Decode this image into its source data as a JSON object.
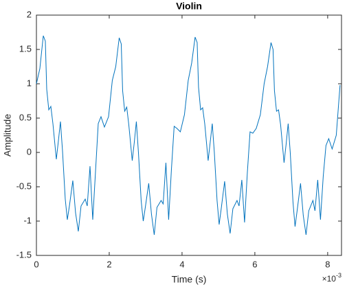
{
  "chart_data": {
    "type": "line",
    "title": "Violin",
    "x_label": "Time (s)",
    "y_label": "Amplitude",
    "x_multiplier": "×10",
    "x_exponent": "-3",
    "series": [
      {
        "name": "Violin",
        "color": "#0072BD",
        "x": [
          0,
          0.094,
          0.189,
          0.245,
          0.283,
          0.34,
          0.396,
          0.453,
          0.547,
          0.604,
          0.66,
          0.717,
          0.792,
          0.849,
          0.906,
          1.0,
          1.075,
          1.151,
          1.226,
          1.34,
          1.396,
          1.472,
          1.547,
          1.623,
          1.698,
          1.774,
          1.868,
          1.981,
          2.085,
          2.179,
          2.274,
          2.33,
          2.368,
          2.425,
          2.481,
          2.538,
          2.632,
          2.689,
          2.745,
          2.802,
          2.877,
          2.934,
          2.991,
          3.085,
          3.16,
          3.236,
          3.311,
          3.425,
          3.481,
          3.557,
          3.632,
          3.708,
          3.783,
          3.859,
          3.953,
          4.066,
          4.17,
          4.264,
          4.359,
          4.415,
          4.453,
          4.51,
          4.566,
          4.623,
          4.717,
          4.774,
          4.83,
          4.887,
          4.962,
          5.019,
          5.076,
          5.17,
          5.245,
          5.321,
          5.396,
          5.51,
          5.566,
          5.642,
          5.717,
          5.793,
          5.868,
          5.944,
          6.038,
          6.151,
          6.255,
          6.349,
          6.444,
          6.5,
          6.538,
          6.595,
          6.651,
          6.708,
          6.802,
          6.859,
          6.915,
          6.972,
          7.047,
          7.104,
          7.161,
          7.255,
          7.33,
          7.406,
          7.481,
          7.595,
          7.651,
          7.727,
          7.802,
          7.878,
          7.953,
          8.029,
          8.123,
          8.236,
          8.34
        ],
        "values": [
          1.0,
          1.22,
          1.7,
          1.62,
          0.92,
          0.62,
          0.67,
          0.42,
          -0.1,
          0.17,
          0.45,
          0.02,
          -0.68,
          -0.98,
          -0.78,
          -0.41,
          -0.88,
          -1.15,
          -0.78,
          -0.68,
          -0.78,
          -0.2,
          -0.98,
          -0.28,
          0.42,
          0.52,
          0.37,
          0.52,
          1.05,
          1.25,
          1.67,
          1.58,
          0.9,
          0.6,
          0.66,
          0.4,
          -0.12,
          0.15,
          0.45,
          0.0,
          -0.7,
          -1.0,
          -0.8,
          -0.45,
          -0.9,
          -1.2,
          -0.8,
          -0.7,
          -0.75,
          -0.15,
          -0.98,
          -0.25,
          0.38,
          0.35,
          0.3,
          0.55,
          1.05,
          1.3,
          1.68,
          1.6,
          0.95,
          0.62,
          0.65,
          0.42,
          -0.12,
          0.15,
          0.42,
          0.0,
          -0.7,
          -1.05,
          -0.82,
          -0.42,
          -0.9,
          -1.18,
          -0.82,
          -0.7,
          -0.78,
          -0.4,
          -1.02,
          -0.3,
          0.3,
          0.28,
          0.35,
          0.55,
          1.0,
          1.25,
          1.6,
          1.5,
          0.9,
          0.6,
          0.62,
          0.4,
          -0.15,
          0.12,
          0.42,
          0.0,
          -0.72,
          -1.08,
          -0.85,
          -0.45,
          -0.92,
          -1.2,
          -0.85,
          -0.7,
          -0.85,
          -0.4,
          -0.98,
          -0.35,
          0.1,
          0.2,
          0.05,
          0.25,
          0.98
        ]
      }
    ],
    "xlim": [
      0,
      8.38
    ],
    "ylim": [
      -1.5,
      2
    ],
    "xticks": [
      0,
      2,
      4,
      6,
      8
    ],
    "yticks": [
      -1.5,
      -1,
      -0.5,
      0,
      0.5,
      1,
      1.5,
      2
    ]
  }
}
